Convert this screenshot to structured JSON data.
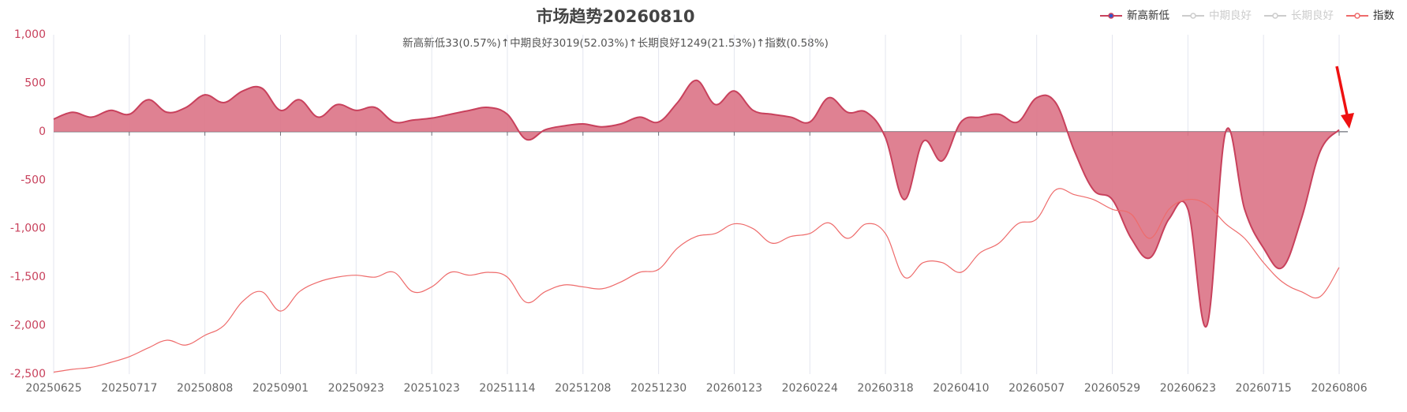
{
  "chart_data": {
    "type": "area-line",
    "title": "市场趋势20260810",
    "subtitle": "新高新低33(0.57%)↑中期良好3019(52.03%)↑长期良好1249(21.53%)↑指数(0.58%)",
    "categories": [
      "20250625",
      null,
      null,
      null,
      "20250717",
      null,
      null,
      null,
      "20250808",
      null,
      null,
      null,
      "20250901",
      null,
      null,
      null,
      "20250923",
      null,
      null,
      null,
      "20251023",
      null,
      null,
      null,
      "20251114",
      null,
      null,
      null,
      "20251208",
      null,
      null,
      null,
      "20251230",
      null,
      null,
      null,
      "20260123",
      null,
      null,
      null,
      "20260224",
      null,
      null,
      null,
      "20260318",
      null,
      null,
      null,
      "20260410",
      null,
      null,
      null,
      "20260507",
      null,
      null,
      null,
      "20260529",
      null,
      null,
      null,
      "20260623",
      null,
      null,
      null,
      "20260715",
      null,
      null,
      null,
      "20260806"
    ],
    "series": [
      {
        "name": "新高新低",
        "color": "#c8415c",
        "fill": "#dc7386",
        "values": [
          130,
          200,
          150,
          220,
          180,
          330,
          200,
          250,
          380,
          300,
          420,
          450,
          220,
          330,
          150,
          280,
          220,
          250,
          100,
          120,
          140,
          180,
          220,
          250,
          180,
          -80,
          20,
          60,
          80,
          50,
          80,
          150,
          100,
          300,
          530,
          280,
          420,
          220,
          180,
          150,
          100,
          350,
          200,
          200,
          -60,
          -700,
          -100,
          -300,
          100,
          150,
          180,
          100,
          350,
          300,
          -200,
          -600,
          -700,
          -1100,
          -1300,
          -900,
          -800,
          -2000,
          0,
          -800,
          -1200,
          -1400,
          -900,
          -200,
          20
        ]
      },
      {
        "name": "指数",
        "color": "#ee6b6b",
        "values": [
          -2480,
          -2450,
          -2430,
          -2380,
          -2320,
          -2230,
          -2150,
          -2200,
          -2100,
          -2000,
          -1750,
          -1650,
          -1850,
          -1650,
          -1550,
          -1500,
          -1480,
          -1500,
          -1450,
          -1650,
          -1600,
          -1450,
          -1480,
          -1450,
          -1500,
          -1760,
          -1650,
          -1580,
          -1600,
          -1620,
          -1550,
          -1450,
          -1420,
          -1200,
          -1080,
          -1050,
          -950,
          -1000,
          -1150,
          -1080,
          -1050,
          -940,
          -1100,
          -950,
          -1050,
          -1500,
          -1350,
          -1350,
          -1450,
          -1250,
          -1150,
          -950,
          -900,
          -600,
          -650,
          -700,
          -800,
          -850,
          -1100,
          -800,
          -700,
          -750,
          -950,
          -1100,
          -1350,
          -1550,
          -1650,
          -1700,
          -1400
        ]
      }
    ],
    "inactive_series": [
      {
        "name": "中期良好",
        "color": "#cccccc"
      },
      {
        "name": "长期良好",
        "color": "#cccccc"
      }
    ],
    "ylim": [
      -2500,
      1000
    ],
    "yticks": [
      {
        "value": 1000,
        "label": "1,000"
      },
      500,
      0,
      -500,
      {
        "value": -1000,
        "label": "-1,000"
      },
      {
        "value": -1500,
        "label": "-1,500"
      },
      {
        "value": -2000,
        "label": "-2,000"
      },
      {
        "value": -2500,
        "label": "-2,500"
      }
    ],
    "grid": true,
    "legend": "top-right"
  }
}
